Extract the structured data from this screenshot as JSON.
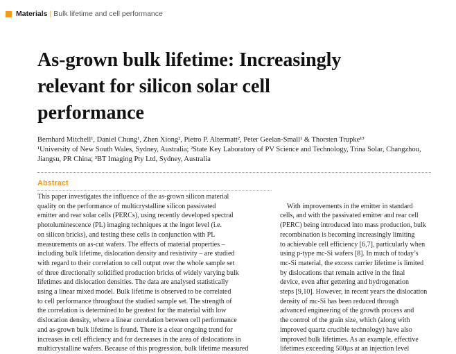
{
  "header": {
    "section": "Materials",
    "separator": "|",
    "topic": "Bulk lifetime and cell performance"
  },
  "title": {
    "lines": [
      "As-grown bulk lifetime: Increasingly",
      "relevant for silicon solar cell",
      "performance"
    ]
  },
  "authors": "Bernhard Mitchell¹, Daniel Chung¹, Zhen Xiong², Pietro P. Altermatt², Peter Geelan-Small¹ & Thorsten Trupke¹³",
  "affiliations": {
    "line1": "¹University of New South Wales, Sydney, Australia; ²State Key Laboratory of PV Science and Technology, Trina Solar, Changzhou,",
    "line2": "Jiangsu, PR China; ³BT Imaging Pty Ltd, Sydney, Australia"
  },
  "abstract": {
    "heading": "Abstract",
    "lines": [
      "This paper investigates the influence of the as-grown silicon material",
      "quality on the performance of multicrystalline silicon passivated",
      "emitter and rear solar cells (PERCs), using recently developed spectral",
      "photoluminescence (PL) imaging techniques at the ingot level (i.e.",
      "on silicon bricks), and testing these cells in conjunction with PL",
      "measurements on as-cut wafers. The effects of material properties –",
      "including bulk lifetime, dislocation density and resistivity – are studied",
      "with regard to their correlation to cell output over the whole sample set",
      "of three directionally solidified production bricks of widely varying bulk",
      "lifetimes and dislocation densities. The data are analysed statistically",
      "using a linear mixed model. Bulk lifetime is observed to be correlated",
      "to cell performance throughout the studied sample set. The strength of",
      "the correlation is determined to be greatest for the material with low",
      "dislocation density, where a linear correlation between cell performance",
      "and as-grown bulk lifetime is found. There is a clear ongoing trend for",
      "increases in cell efficiency and for decreases in the area of dislocations in",
      "multicrystalline wafers. Because of this progression, bulk lifetime measured"
    ]
  },
  "body": {
    "lines": [
      "",
      "With improvements in the emitter in standard",
      "cells, and with the passivated emitter and rear cell",
      "(PERC) being introduced into mass production, bulk",
      "recombination is becoming increasingly limiting",
      "to achievable cell efficiency [6,7], particularly when",
      "using p-type mc-Si wafers [8]. In much of today’s",
      "mc-Si material, the excess carrier lifetime is limited",
      "by dislocations that remain active in the final",
      "device, even after gettering and hydrogenation",
      "steps [9,10]. However, in recent years the dislocation",
      "density of mc-Si has been reduced through",
      "advanced engineering of the growth process and",
      "the control of the grain size, which (along with",
      "improved quartz crucible technology) have also",
      "improved bulk lifetimes. As an example, effective",
      "lifetimes exceeding 500µs at an injection level"
    ]
  }
}
